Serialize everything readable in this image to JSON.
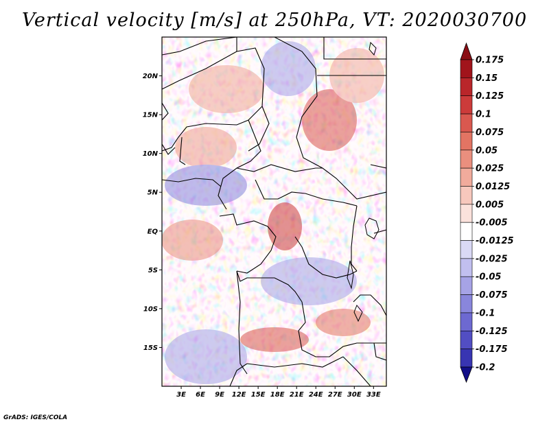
{
  "title": "Vertical velocity [m/s] at 250hPa, VT: 2020030700",
  "credit": "GrADS: IGES/COLA",
  "map": {
    "lat_range": [
      -20,
      25
    ],
    "lon_range": [
      0,
      35
    ],
    "lat_ticks": [
      {
        "value": 20,
        "label": "20N"
      },
      {
        "value": 15,
        "label": "15N"
      },
      {
        "value": 10,
        "label": "10N"
      },
      {
        "value": 5,
        "label": "5N"
      },
      {
        "value": 0,
        "label": "EQ"
      },
      {
        "value": -5,
        "label": "5S"
      },
      {
        "value": -10,
        "label": "10S"
      },
      {
        "value": -15,
        "label": "15S"
      }
    ],
    "lon_ticks": [
      {
        "value": 3,
        "label": "3E"
      },
      {
        "value": 6,
        "label": "6E"
      },
      {
        "value": 9,
        "label": "9E"
      },
      {
        "value": 12,
        "label": "12E"
      },
      {
        "value": 15,
        "label": "15E"
      },
      {
        "value": 18,
        "label": "18E"
      },
      {
        "value": 21,
        "label": "21E"
      },
      {
        "value": 24,
        "label": "24E"
      },
      {
        "value": 27,
        "label": "27E"
      },
      {
        "value": 30,
        "label": "30E"
      },
      {
        "value": 33,
        "label": "33E"
      }
    ]
  },
  "colorbar": {
    "levels": [
      {
        "label": "0.175",
        "color": "#a1141b"
      },
      {
        "label": "0.15",
        "color": "#b9262a"
      },
      {
        "label": "0.125",
        "color": "#cc3b3a"
      },
      {
        "label": "0.1",
        "color": "#d9584f"
      },
      {
        "label": "0.075",
        "color": "#e27463"
      },
      {
        "label": "0.05",
        "color": "#ea8f7e"
      },
      {
        "label": "0.025",
        "color": "#f1ab9c"
      },
      {
        "label": "0.0125",
        "color": "#f7c8bd"
      },
      {
        "label": "0.005",
        "color": "#fbe2dc"
      },
      {
        "label": "-0.005",
        "color": "#ffffff"
      },
      {
        "label": "-0.0125",
        "color": "#dad9f5"
      },
      {
        "label": "-0.025",
        "color": "#c1bfef"
      },
      {
        "label": "-0.05",
        "color": "#a6a3e6"
      },
      {
        "label": "-0.075",
        "color": "#8986dc"
      },
      {
        "label": "-0.1",
        "color": "#6d69d1"
      },
      {
        "label": "-0.125",
        "color": "#524ec3"
      },
      {
        "label": "-0.175",
        "color": "#3835b2"
      },
      {
        "label": "-0.2",
        "color": "#201d9c"
      }
    ],
    "top_arrow_color": "#8a0e14",
    "bottom_arrow_color": "#120f88"
  }
}
